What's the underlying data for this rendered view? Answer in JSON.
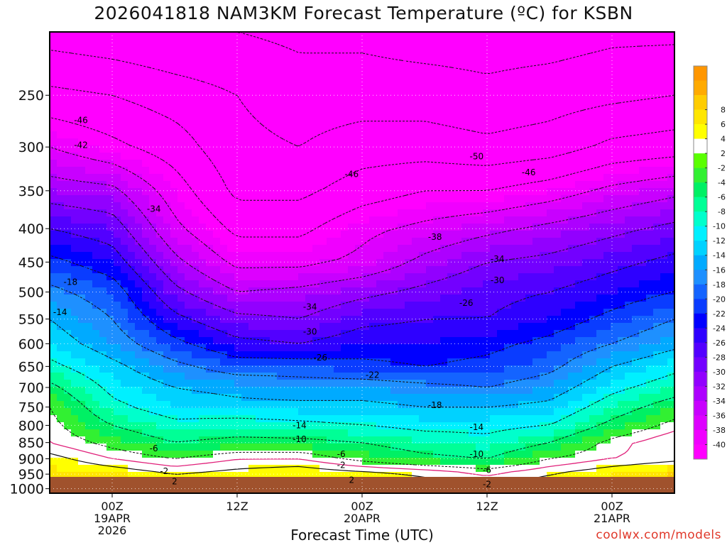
{
  "chart_data": {
    "type": "heatmap",
    "title": "2026041818 NAM3KM Forecast Temperature (ºC) for KSBN",
    "xlabel": "Forecast Time (UTC)",
    "ylabel": "",
    "y_axis": {
      "scale": "log",
      "range": [
        1016,
        200
      ],
      "ticks": [
        250,
        300,
        350,
        400,
        450,
        500,
        550,
        600,
        650,
        700,
        750,
        800,
        850,
        900,
        950,
        1000
      ]
    },
    "x_axis": {
      "range": [
        -6,
        54
      ],
      "ticks": [
        {
          "hours": 0,
          "lines": [
            "00Z",
            "19APR",
            "2026"
          ]
        },
        {
          "hours": 12,
          "lines": [
            "12Z"
          ]
        },
        {
          "hours": 24,
          "lines": [
            "00Z",
            "20APR"
          ]
        },
        {
          "hours": 36,
          "lines": [
            "12Z"
          ]
        },
        {
          "hours": 48,
          "lines": [
            "00Z",
            "21APR"
          ]
        }
      ]
    },
    "grid": true,
    "colorbar": {
      "position": "right",
      "labels": [
        "-40",
        "-38",
        "-36",
        "-34",
        "-32",
        "-30",
        "-28",
        "-26",
        "-24",
        "-22",
        "-20",
        "-18",
        "-16",
        "-14",
        "-12",
        "-10",
        "-8",
        "-6",
        "-4",
        "-2",
        "2",
        "4",
        "6",
        "8"
      ],
      "colors": [
        "#ff00ff",
        "#f000ff",
        "#dd00ff",
        "#c800ff",
        "#ad00ff",
        "#9200ff",
        "#7300ff",
        "#5200ff",
        "#2e00ff",
        "#0000ff",
        "#0a3cff",
        "#1464ff",
        "#1e90ff",
        "#00aaff",
        "#00d2ff",
        "#00f0ff",
        "#00ffcc",
        "#00ff96",
        "#00f064",
        "#32f032",
        "#5aff00",
        "#ffffff",
        "#ffff00",
        "#ffe600",
        "#ffcc00",
        "#ffaa00",
        "#ff9600"
      ]
    },
    "levels": [
      1000,
      950,
      900,
      850,
      800,
      750,
      700,
      650,
      600,
      550,
      500,
      450,
      400,
      350,
      300,
      250,
      200
    ],
    "times": [
      -6,
      0,
      6,
      12,
      18,
      24,
      30,
      36,
      42,
      48,
      54
    ],
    "values": [
      [
        10,
        9,
        5,
        5,
        6,
        7,
        3,
        2,
        4,
        6,
        9
      ],
      [
        5,
        4,
        2,
        3,
        4,
        3,
        2,
        0,
        2,
        4,
        6
      ],
      [
        3,
        0,
        -2,
        0,
        0,
        -3,
        -5,
        -6,
        -2,
        0,
        1
      ],
      [
        0,
        -3,
        -6,
        -5,
        -5,
        -6,
        -8,
        -9,
        -6,
        -1,
        2
      ],
      [
        -1,
        -6,
        -9,
        -8,
        -9,
        -10,
        -11,
        -11,
        -10,
        -5,
        -1
      ],
      [
        -2,
        -9,
        -12,
        -13,
        -13,
        -13,
        -14,
        -14,
        -13,
        -8,
        -4
      ],
      [
        -5,
        -11,
        -14,
        -15,
        -16,
        -16,
        -17,
        -18,
        -16,
        -11,
        -8
      ],
      [
        -9,
        -13,
        -17,
        -20,
        -20,
        -21,
        -22,
        -21,
        -19,
        -14,
        -11
      ],
      [
        -12,
        -16,
        -21,
        -25,
        -26,
        -24,
        -24,
        -23,
        -21,
        -18,
        -15
      ],
      [
        -14,
        -18,
        -25,
        -29,
        -30,
        -27,
        -26,
        -26,
        -24,
        -21,
        -18
      ],
      [
        -17,
        -20,
        -29,
        -34,
        -33,
        -31,
        -29,
        -27,
        -26,
        -24,
        -22
      ],
      [
        -21,
        -24,
        -33,
        -39,
        -39,
        -37,
        -33,
        -30,
        -29,
        -27,
        -25
      ],
      [
        -26,
        -28,
        -37,
        -43,
        -43,
        -39,
        -37,
        -35,
        -33,
        -31,
        -29
      ],
      [
        -32,
        -33,
        -40,
        -47,
        -47,
        -44,
        -42,
        -42,
        -40,
        -37,
        -35
      ],
      [
        -38,
        -41,
        -44,
        -49,
        -50,
        -48,
        -48,
        -49,
        -48,
        -45,
        -44
      ],
      [
        -45,
        -46,
        -48,
        -50,
        -52,
        -52,
        -52,
        -53,
        -52,
        -51,
        -50
      ],
      [
        -52,
        -53,
        -54,
        -54,
        -55,
        -55,
        -56,
        -56,
        -56,
        -55,
        -55
      ]
    ],
    "contour_labels": [
      {
        "text": "-46",
        "t": -3,
        "p": 273
      },
      {
        "text": "-42",
        "t": -3,
        "p": 298
      },
      {
        "text": "-34",
        "t": 4,
        "p": 373
      },
      {
        "text": "-46",
        "t": 23,
        "p": 330
      },
      {
        "text": "-50",
        "t": 35,
        "p": 310
      },
      {
        "text": "-46",
        "t": 40,
        "p": 328
      },
      {
        "text": "-38",
        "t": 31,
        "p": 412
      },
      {
        "text": "-34",
        "t": 37,
        "p": 445
      },
      {
        "text": "-30",
        "t": 37,
        "p": 480
      },
      {
        "text": "-26",
        "t": 34,
        "p": 520
      },
      {
        "text": "-34",
        "t": 19,
        "p": 527
      },
      {
        "text": "-30",
        "t": 19,
        "p": 575
      },
      {
        "text": "-26",
        "t": 20,
        "p": 630
      },
      {
        "text": "-22",
        "t": 25,
        "p": 670
      },
      {
        "text": "-18",
        "t": -4,
        "p": 483
      },
      {
        "text": "-14",
        "t": -5,
        "p": 537
      },
      {
        "text": "-18",
        "t": 31,
        "p": 745
      },
      {
        "text": "-14",
        "t": 18,
        "p": 800
      },
      {
        "text": "-14",
        "t": 35,
        "p": 805
      },
      {
        "text": "-10",
        "t": 18,
        "p": 840
      },
      {
        "text": "-10",
        "t": 35,
        "p": 885
      },
      {
        "text": "-6",
        "t": 4,
        "p": 868
      },
      {
        "text": "-6",
        "t": 22,
        "p": 885
      },
      {
        "text": "-6",
        "t": 36,
        "p": 937
      },
      {
        "text": "-2",
        "t": 22,
        "p": 920
      },
      {
        "text": "-2",
        "t": 5,
        "p": 940
      },
      {
        "text": "-2",
        "t": 36,
        "p": 985
      },
      {
        "text": "2",
        "t": 6,
        "p": 975
      },
      {
        "text": "2",
        "t": 23,
        "p": 970
      }
    ]
  },
  "credit": "coolwx.com/models"
}
